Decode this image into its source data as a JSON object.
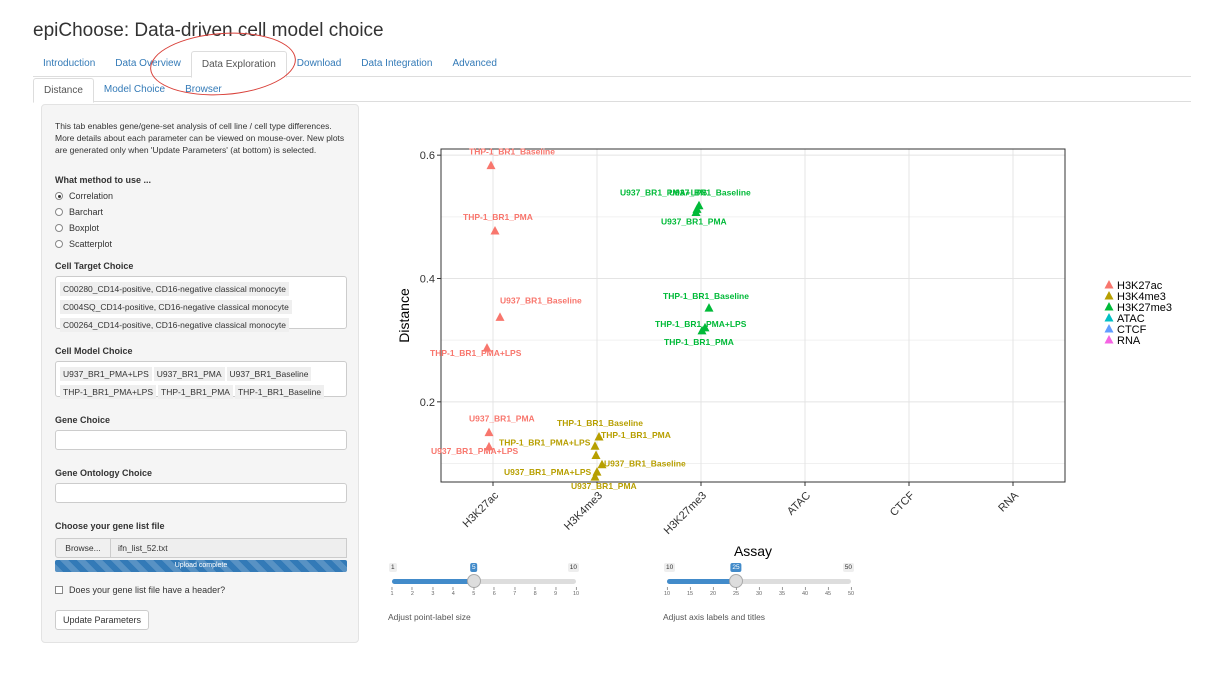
{
  "app": {
    "title": "epiChoose: Data-driven cell model choice"
  },
  "tabs_main": [
    "Introduction",
    "Data Overview",
    "Data Exploration",
    "Download",
    "Data Integration",
    "Advanced"
  ],
  "tabs_sub": [
    "Distance",
    "Model Choice",
    "Browser"
  ],
  "sidebar": {
    "description": "This tab enables gene/gene-set analysis of cell line / cell type differences. More details about each parameter can be viewed on mouse-over. New plots are generated only when 'Update Parameters' (at bottom) is selected.",
    "method_label": "What method to use ...",
    "methods": [
      "Correlation",
      "Barchart",
      "Boxplot",
      "Scatterplot"
    ],
    "method_selected": "Correlation",
    "cell_target_label": "Cell Target Choice",
    "cell_targets": [
      "C00280_CD14-positive, CD16-negative classical monocyte",
      "C004SQ_CD14-positive, CD16-negative classical monocyte",
      "C00264_CD14-positive, CD16-negative classical monocyte"
    ],
    "cell_model_label": "Cell Model Choice",
    "cell_models": [
      "U937_BR1_PMA+LPS",
      "U937_BR1_PMA",
      "U937_BR1_Baseline",
      "THP-1_BR1_PMA+LPS",
      "THP-1_BR1_PMA",
      "THP-1_BR1_Baseline"
    ],
    "gene_choice_label": "Gene Choice",
    "gene_choice_value": "",
    "ontology_label": "Gene Ontology Choice",
    "ontology_value": "",
    "gene_file_label": "Choose your gene list file",
    "browse_label": "Browse...",
    "file_name": "ifn_list_52.txt",
    "upload_status": "Upload complete",
    "upload_progress": 1.0,
    "header_check_label": "Does your gene list file have a header?",
    "header_checked": false,
    "update_button": "Update Parameters"
  },
  "sliders": [
    {
      "caption": "Adjust point-label size",
      "min": 1,
      "max": 10,
      "value": 5,
      "ticks": [
        1,
        2,
        3,
        4,
        5,
        6,
        7,
        8,
        9,
        10
      ]
    },
    {
      "caption": "Adjust axis labels and titles",
      "min": 10,
      "max": 50,
      "value": 25,
      "ticks": [
        10,
        15,
        20,
        25,
        30,
        35,
        40,
        45,
        50
      ]
    }
  ],
  "colors": {
    "H3K27ac": "#F8766D",
    "H3K4me3": "#B79F00",
    "H3K27me3": "#00BA38",
    "ATAC": "#00BFC4",
    "CTCF": "#619CFF",
    "RNA": "#F564E3",
    "accent": "#337ab7"
  },
  "chart_data": {
    "type": "scatter",
    "xlabel": "Assay",
    "ylabel": "Distance",
    "categories": [
      "H3K27ac",
      "H3K4me3",
      "H3K27me3",
      "ATAC",
      "CTCF",
      "RNA"
    ],
    "ylim": [
      0.07,
      0.61
    ],
    "yticks": [
      0.2,
      0.4,
      0.6
    ],
    "grid": true,
    "legend_placement": "right",
    "legend": [
      "H3K27ac",
      "H3K4me3",
      "H3K27me3",
      "ATAC",
      "CTCF",
      "RNA"
    ],
    "series": [
      {
        "name": "H3K27ac",
        "points": [
          {
            "label": "THP-1_BR1_Baseline",
            "x": "H3K27ac",
            "y": 0.583
          },
          {
            "label": "THP-1_BR1_PMA",
            "x": "H3K27ac",
            "y": 0.477
          },
          {
            "label": "U937_BR1_Baseline",
            "x": "H3K27ac",
            "y": 0.337
          },
          {
            "label": "THP-1_BR1_PMA+LPS",
            "x": "H3K27ac",
            "y": 0.287
          },
          {
            "label": "U937_BR1_PMA",
            "x": "H3K27ac",
            "y": 0.15
          },
          {
            "label": "U937_BR1_PMA+LPS",
            "x": "H3K27ac",
            "y": 0.127
          }
        ]
      },
      {
        "name": "H3K4me3",
        "points": [
          {
            "label": "THP-1_BR1_Baseline",
            "x": "H3K4me3",
            "y": 0.143
          },
          {
            "label": "THP-1_BR1_PMA",
            "x": "H3K4me3",
            "y": 0.128
          },
          {
            "label": "THP-1_BR1_PMA+LPS",
            "x": "H3K4me3",
            "y": 0.113
          },
          {
            "label": "U937_BR1_Baseline",
            "x": "H3K4me3",
            "y": 0.098
          },
          {
            "label": "U937_BR1_PMA+LPS",
            "x": "H3K4me3",
            "y": 0.086
          },
          {
            "label": "U937_BR1_PMA",
            "x": "H3K4me3",
            "y": 0.078
          }
        ]
      },
      {
        "name": "H3K27me3",
        "points": [
          {
            "label": "U937_BR1_Baseline",
            "x": "H3K27me3",
            "y": 0.518
          },
          {
            "label": "U937_BR1_PMA+LPS",
            "x": "H3K27me3",
            "y": 0.512
          },
          {
            "label": "U937_BR1_PMA",
            "x": "H3K27me3",
            "y": 0.507
          },
          {
            "label": "THP-1_BR1_Baseline",
            "x": "H3K27me3",
            "y": 0.352
          },
          {
            "label": "THP-1_BR1_PMA+LPS",
            "x": "H3K27me3",
            "y": 0.32
          },
          {
            "label": "THP-1_BR1_PMA",
            "x": "H3K27me3",
            "y": 0.315
          }
        ]
      }
    ]
  }
}
